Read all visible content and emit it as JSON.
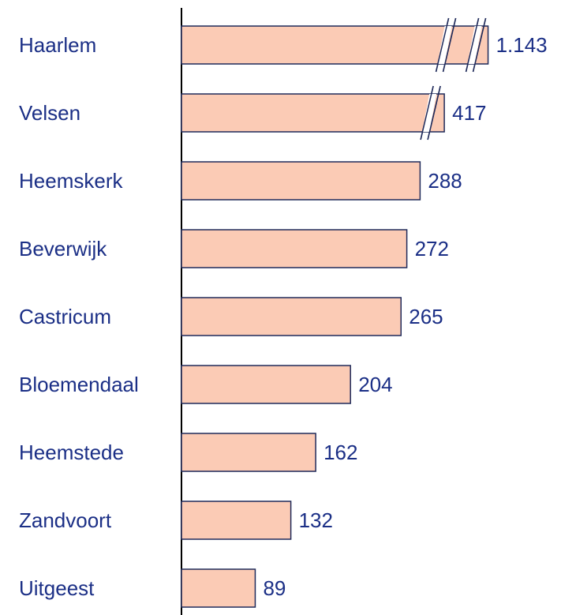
{
  "chart_data": {
    "type": "bar",
    "orientation": "horizontal",
    "categories": [
      "Haarlem",
      "Velsen",
      "Heemskerk",
      "Beverwijk",
      "Castricum",
      "Bloemendaal",
      "Heemstede",
      "Zandvoort",
      "Uitgeest"
    ],
    "values": [
      1143,
      417,
      288,
      272,
      265,
      204,
      162,
      132,
      89
    ],
    "value_labels": [
      "1.143",
      "417",
      "288",
      "272",
      "265",
      "204",
      "162",
      "132",
      "89"
    ],
    "color": "#fbcbb5",
    "axis_break": true
  }
}
